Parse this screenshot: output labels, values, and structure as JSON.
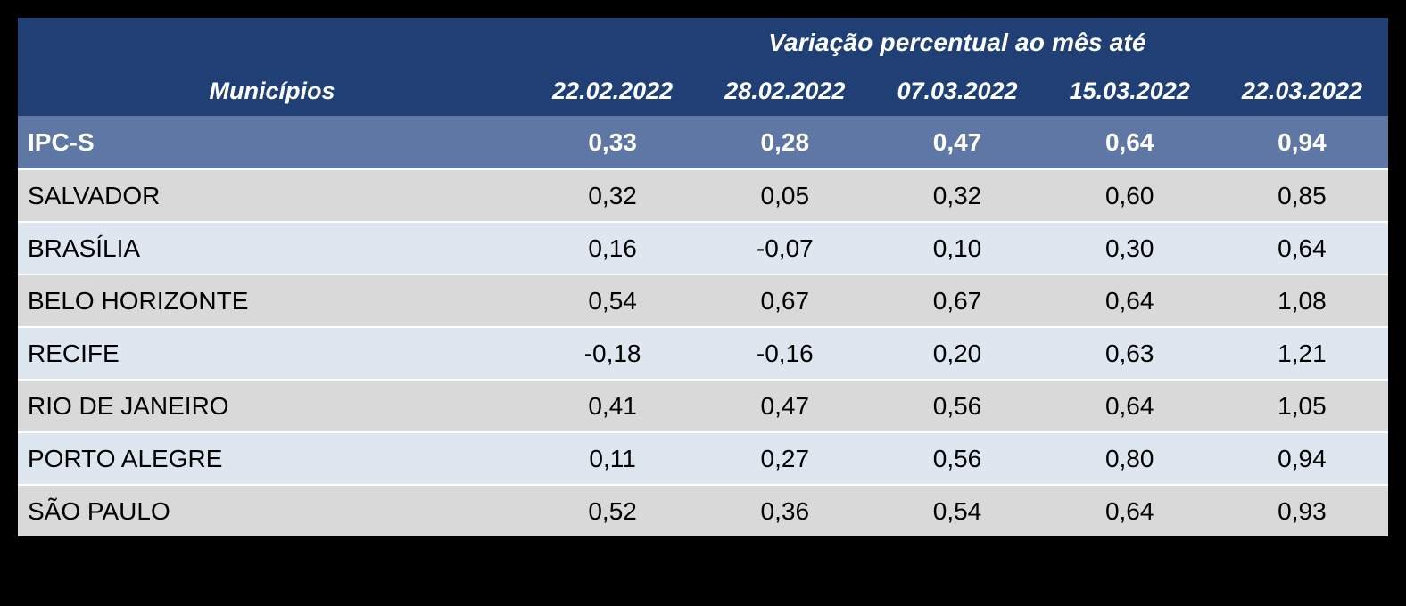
{
  "page": {
    "background_color": "#000000"
  },
  "table": {
    "colors": {
      "header_bg": "#203F74",
      "header_text": "#FFFFFF",
      "ipcs_row_bg": "#5F77A4",
      "row_gray_bg": "#D9D9D9",
      "row_blue_bg": "#DEE7F0",
      "body_text": "#000000",
      "separator": "#FFFFFF"
    },
    "header": {
      "group_title": "Variação percentual ao mês até",
      "municipios_label": "Municípios",
      "date_columns": [
        "22.02.2022",
        "28.02.2022",
        "07.03.2022",
        "15.03.2022",
        "22.03.2022"
      ]
    },
    "ipcs_row": {
      "label": "IPC-S",
      "values": [
        "0,33",
        "0,28",
        "0,47",
        "0,64",
        "0,94"
      ]
    },
    "rows": [
      {
        "label": "SALVADOR",
        "values": [
          "0,32",
          "0,05",
          "0,32",
          "0,60",
          "0,85"
        ]
      },
      {
        "label": "BRASÍLIA",
        "values": [
          "0,16",
          "-0,07",
          "0,10",
          "0,30",
          "0,64"
        ]
      },
      {
        "label": "BELO HORIZONTE",
        "values": [
          "0,54",
          "0,67",
          "0,67",
          "0,64",
          "1,08"
        ]
      },
      {
        "label": "RECIFE",
        "values": [
          "-0,18",
          "-0,16",
          "0,20",
          "0,63",
          "1,21"
        ]
      },
      {
        "label": "RIO DE JANEIRO",
        "values": [
          "0,41",
          "0,47",
          "0,56",
          "0,64",
          "1,05"
        ]
      },
      {
        "label": "PORTO ALEGRE",
        "values": [
          "0,11",
          "0,27",
          "0,56",
          "0,80",
          "0,94"
        ]
      },
      {
        "label": "SÃO PAULO",
        "values": [
          "0,52",
          "0,36",
          "0,54",
          "0,64",
          "0,93"
        ]
      }
    ]
  },
  "chart_data": {
    "type": "table",
    "title": "Variação percentual ao mês até",
    "columns": [
      "Municípios",
      "22.02.2022",
      "28.02.2022",
      "07.03.2022",
      "15.03.2022",
      "22.03.2022"
    ],
    "rows": [
      [
        "IPC-S",
        0.33,
        0.28,
        0.47,
        0.64,
        0.94
      ],
      [
        "SALVADOR",
        0.32,
        0.05,
        0.32,
        0.6,
        0.85
      ],
      [
        "BRASÍLIA",
        0.16,
        -0.07,
        0.1,
        0.3,
        0.64
      ],
      [
        "BELO HORIZONTE",
        0.54,
        0.67,
        0.67,
        0.64,
        1.08
      ],
      [
        "RECIFE",
        -0.18,
        -0.16,
        0.2,
        0.63,
        1.21
      ],
      [
        "RIO DE JANEIRO",
        0.41,
        0.47,
        0.56,
        0.64,
        1.05
      ],
      [
        "PORTO ALEGRE",
        0.11,
        0.27,
        0.56,
        0.8,
        0.94
      ],
      [
        "SÃO PAULO",
        0.52,
        0.36,
        0.54,
        0.64,
        0.93
      ]
    ],
    "notes": "IPC-S weekly percentage variation by municipality; decimal comma formatting as displayed"
  }
}
